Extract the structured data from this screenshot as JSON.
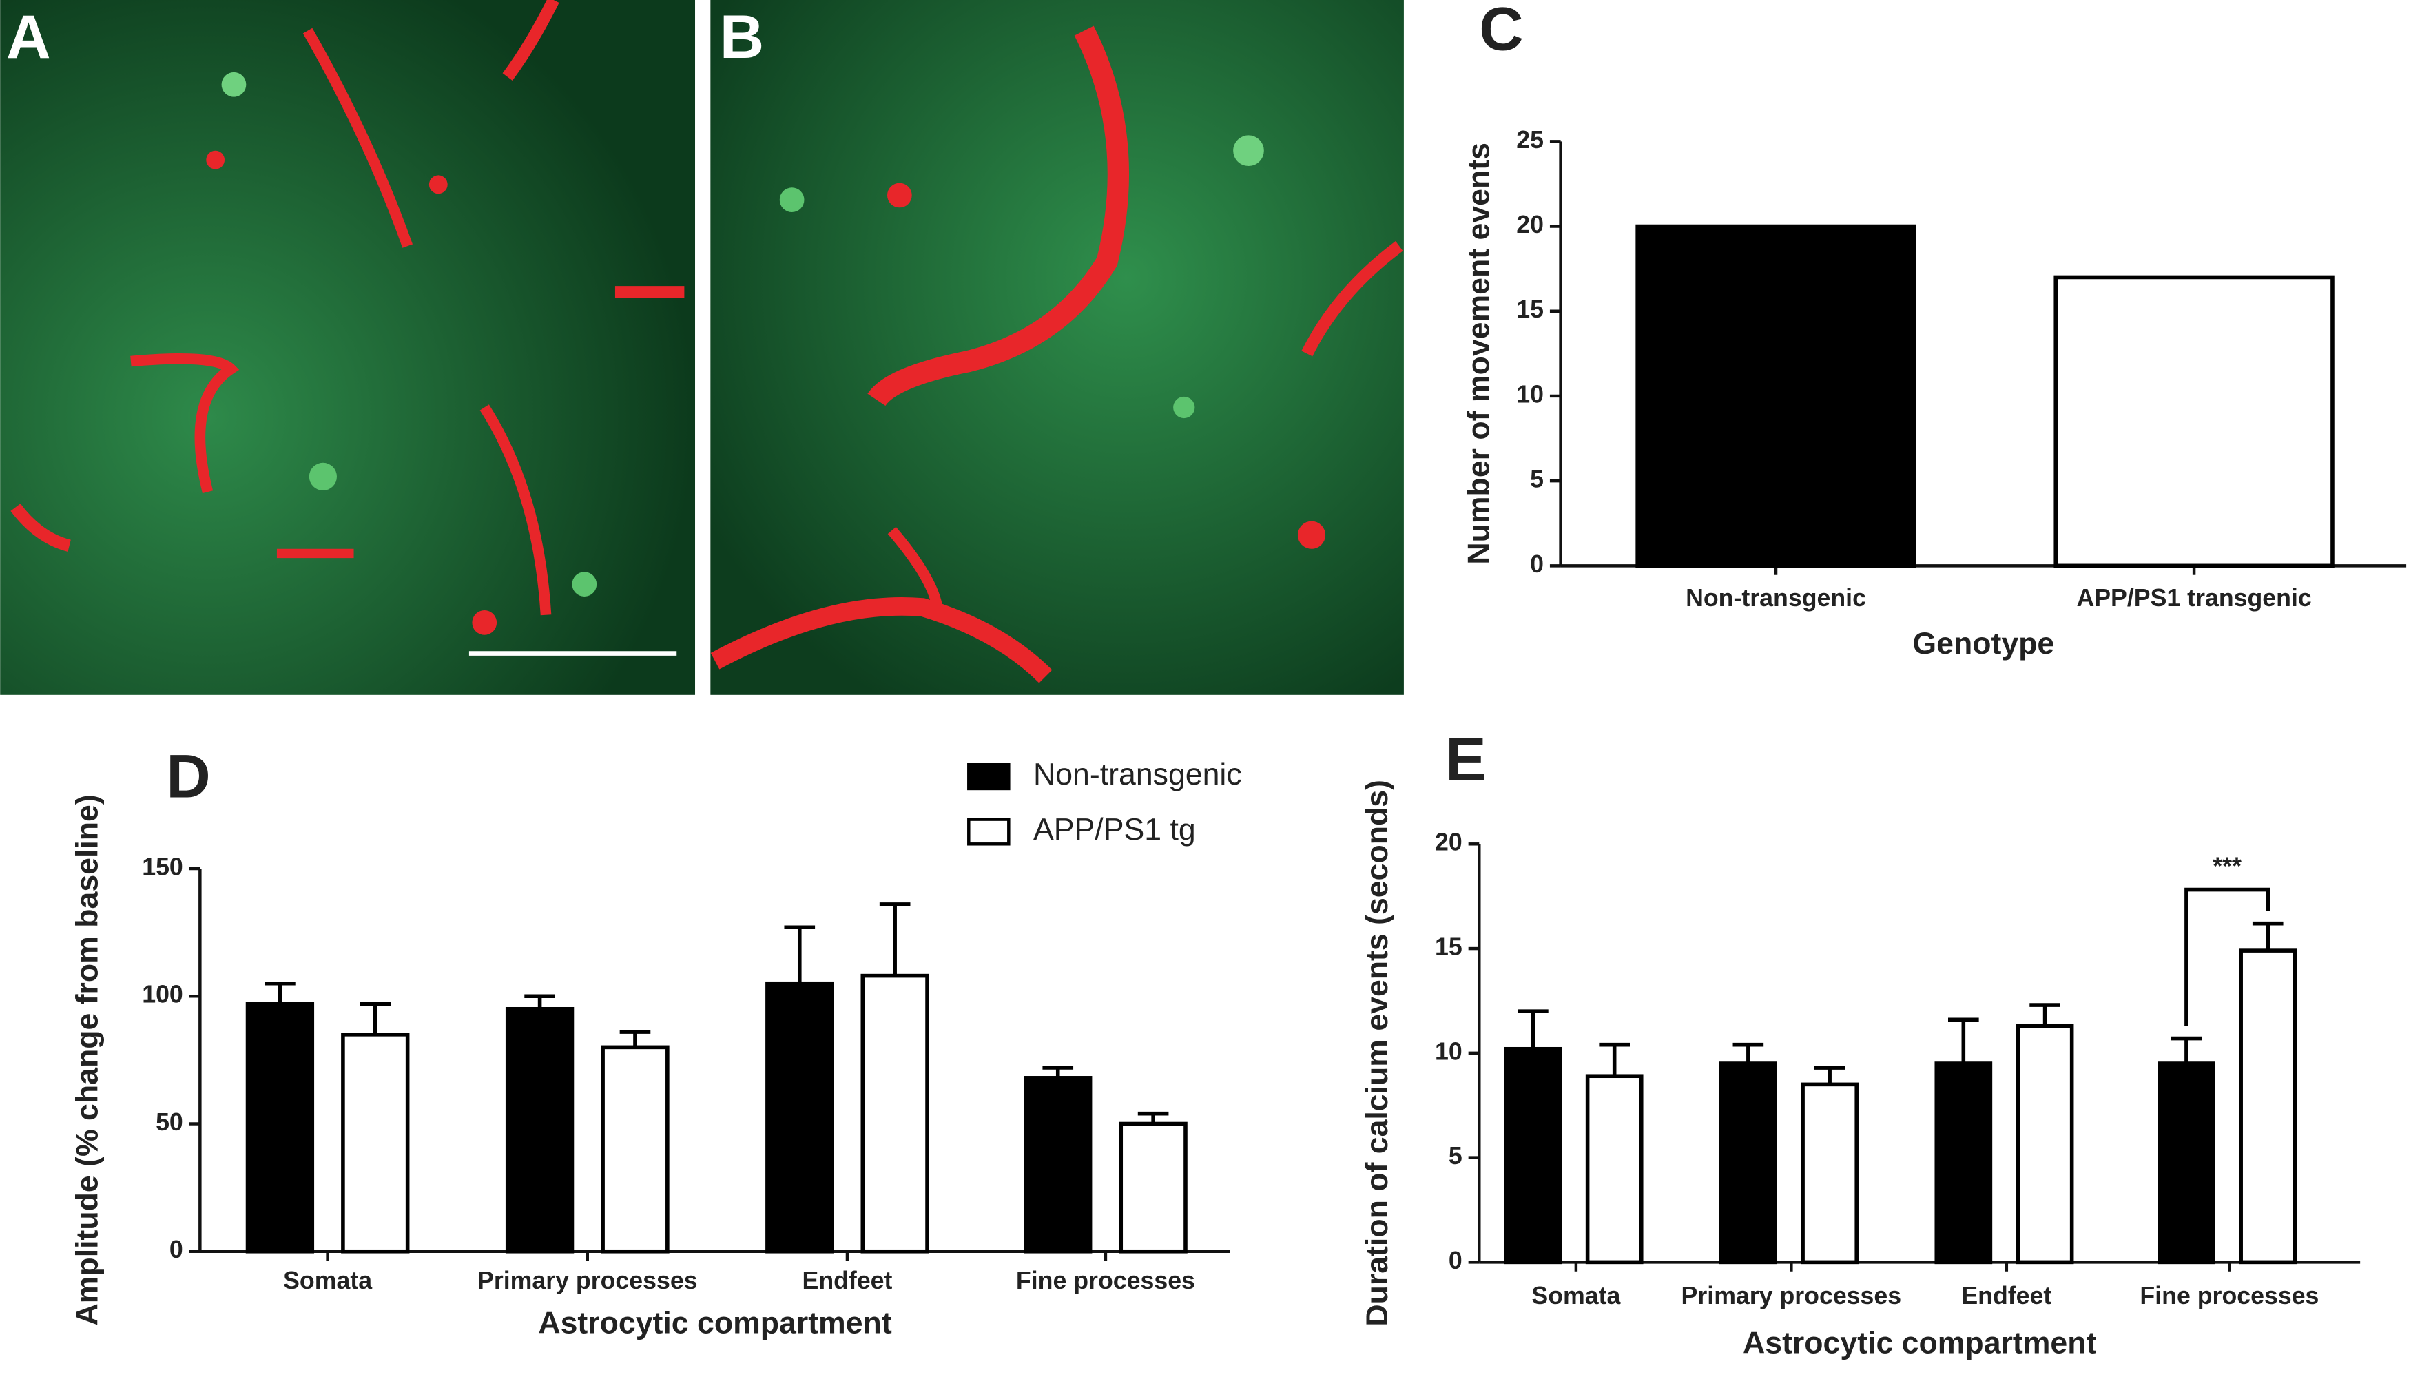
{
  "images": [
    {
      "panel_label": "A"
    },
    {
      "panel_label": "B"
    }
  ],
  "chart_data": [
    {
      "type": "bar",
      "panel_label": "C",
      "ylabel": "Number of movement events",
      "xlabel": "Genotype",
      "categories": [
        "Non-transgenic",
        "APP/PS1 transgenic"
      ],
      "values": [
        20,
        17
      ],
      "colors": [
        "#000000",
        "#ffffff"
      ],
      "ylim": [
        0,
        25
      ],
      "yticks": [
        0,
        5,
        10,
        15,
        20,
        25
      ]
    },
    {
      "type": "grouped_bar",
      "panel_label": "D",
      "ylabel": "Amplitude (% change from baseline)",
      "xlabel": "Astrocytic compartment",
      "categories": [
        "Somata",
        "Primary processes",
        "Endfeet",
        "Fine processes"
      ],
      "series": [
        {
          "name": "Non-transgenic",
          "color": "#000000",
          "values": [
            97,
            95,
            105,
            68
          ],
          "errors": [
            8,
            5,
            22,
            4
          ]
        },
        {
          "name": "APP/PS1 tg",
          "color": "#ffffff",
          "values": [
            85,
            80,
            108,
            50
          ],
          "errors": [
            12,
            6,
            28,
            4
          ]
        }
      ],
      "ylim": [
        0,
        150
      ],
      "yticks": [
        0,
        50,
        100,
        150
      ]
    },
    {
      "type": "grouped_bar",
      "panel_label": "E",
      "ylabel": "Duration of calcium events (seconds)",
      "xlabel": "Astrocytic compartment",
      "categories": [
        "Somata",
        "Primary processes",
        "Endfeet",
        "Fine processes"
      ],
      "series": [
        {
          "color": "#000000",
          "values": [
            10.2,
            9.5,
            9.5,
            9.5
          ],
          "errors": [
            1.8,
            0.9,
            2.1,
            1.2
          ]
        },
        {
          "color": "#ffffff",
          "values": [
            8.9,
            8.5,
            11.3,
            14.9
          ],
          "errors": [
            1.5,
            0.8,
            1.0,
            1.3
          ]
        }
      ],
      "ylim": [
        0,
        20
      ],
      "yticks": [
        0,
        5,
        10,
        15,
        20
      ],
      "annotation": "***"
    }
  ]
}
